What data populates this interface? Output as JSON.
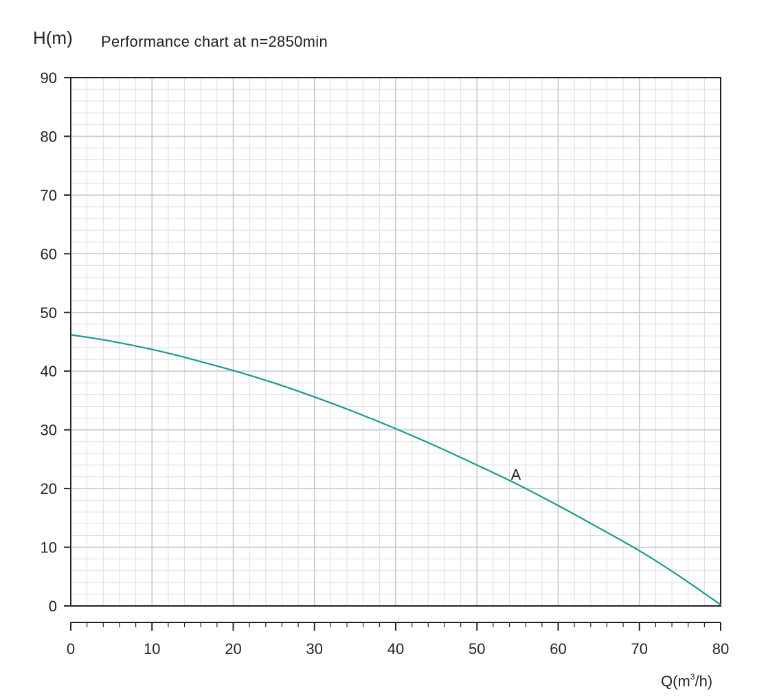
{
  "chart_data": {
    "type": "line",
    "title": "Performance chart at n=2850min",
    "ylabel": "H(m)",
    "xlabel": {
      "prefix": "Q(m",
      "sup": "3",
      "suffix": "/h)"
    },
    "xlim": [
      0,
      80
    ],
    "ylim": [
      0,
      90
    ],
    "x_ticks": [
      0,
      10,
      20,
      30,
      40,
      50,
      60,
      70,
      80
    ],
    "y_ticks": [
      0,
      10,
      20,
      30,
      40,
      50,
      60,
      70,
      80,
      90
    ],
    "grid": true,
    "series": [
      {
        "name": "A",
        "color": "#1a9a8c",
        "x": [
          0,
          5,
          10,
          15,
          20,
          25,
          30,
          35,
          40,
          45,
          50,
          55,
          60,
          65,
          70,
          75,
          80
        ],
        "y": [
          46.2,
          45.1,
          43.7,
          42.0,
          40.1,
          38.0,
          35.6,
          33.0,
          30.2,
          27.2,
          24.0,
          20.7,
          17.1,
          13.3,
          9.4,
          5.0,
          0.2
        ]
      }
    ],
    "annotations": [
      {
        "text": "A",
        "x": 54.8,
        "y": 21.5
      }
    ]
  },
  "colors": {
    "grid_major": "#c8c8c8",
    "grid_minor": "#dedede",
    "axis": "#222222",
    "curve": "#1a9a8c"
  }
}
